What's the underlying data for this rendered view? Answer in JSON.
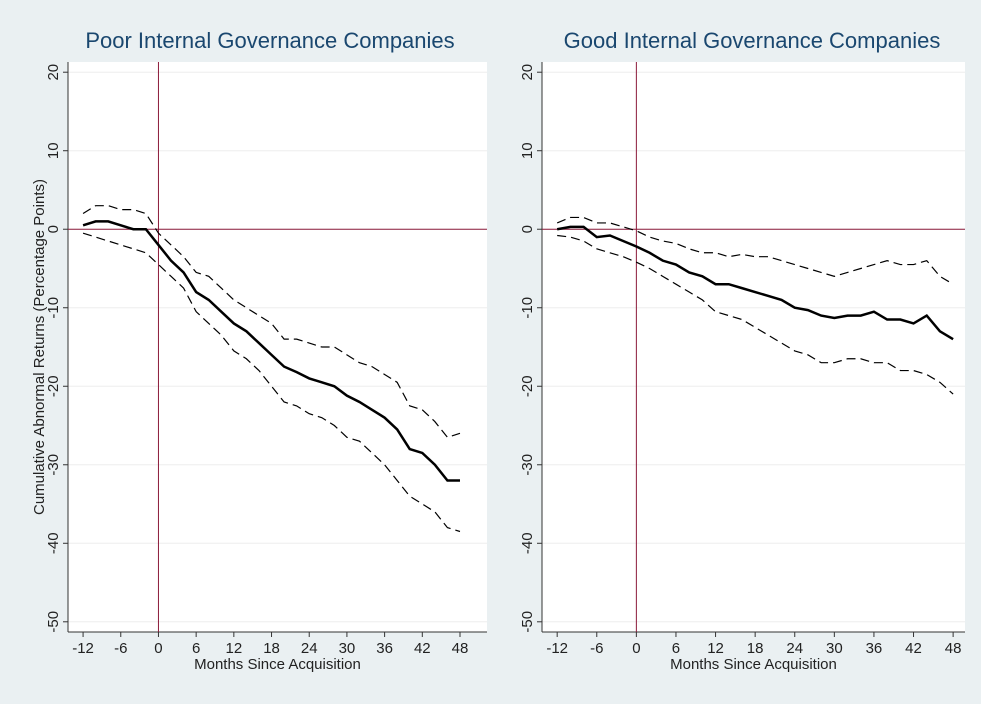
{
  "chart_data": [
    {
      "type": "line",
      "title": "Poor Internal Governance Companies",
      "xlabel": "Months Since Acquisition",
      "ylabel": "Cumulative Abnormal Returns (Percentage Points)",
      "x": [
        -12,
        -10,
        -8,
        -6,
        -4,
        -2,
        0,
        2,
        4,
        6,
        8,
        10,
        12,
        14,
        16,
        18,
        20,
        22,
        24,
        26,
        28,
        30,
        32,
        34,
        36,
        38,
        40,
        42,
        44,
        46,
        48
      ],
      "series": [
        {
          "color": "#000000",
          "dash": false,
          "values": [
            0.5,
            1,
            1,
            0.5,
            0,
            0,
            -2,
            -4,
            -5.5,
            -8,
            -9,
            -10.5,
            -12,
            -13,
            -14.5,
            -16,
            -17.5,
            -18.2,
            -19,
            -19.5,
            -20,
            -21.2,
            -22,
            -23,
            -24,
            -25.5,
            -28,
            -28.5,
            -30,
            -32,
            -32
          ]
        },
        {
          "color": "#000000",
          "dash": true,
          "values": [
            2,
            3,
            3,
            2.5,
            2.5,
            2,
            -0.5,
            -2,
            -3.5,
            -5.5,
            -6,
            -7.5,
            -9,
            -10,
            -11,
            -12,
            -14,
            -14,
            -14.5,
            -15,
            -15,
            -16,
            -17,
            -17.5,
            -18.5,
            -19.5,
            -22.5,
            -23,
            -24.5,
            -26.5,
            -26
          ]
        },
        {
          "color": "#000000",
          "dash": true,
          "values": [
            -0.5,
            -1,
            -1.5,
            -2,
            -2.5,
            -3,
            -4.5,
            -6,
            -7.5,
            -10.5,
            -12,
            -13.5,
            -15.5,
            -16.5,
            -18,
            -20,
            -22,
            -22.5,
            -23.5,
            -24,
            -25,
            -26.5,
            -27,
            -28.5,
            -30,
            -32,
            -34,
            -35,
            -36,
            -38,
            -38.5
          ]
        }
      ],
      "xlim": [
        -14.4,
        52.3
      ],
      "xticks": [
        -12,
        -6,
        0,
        6,
        12,
        18,
        24,
        30,
        36,
        42,
        48
      ],
      "ylim": [
        -51.3,
        21.3
      ],
      "yticks": [
        -50,
        -40,
        -30,
        -20,
        -10,
        0,
        10,
        20
      ],
      "xline": 0,
      "yline": 0,
      "refline_color": "#8b1a3a",
      "grid": true
    },
    {
      "type": "line",
      "title": "Good Internal Governance Companies",
      "xlabel": "Months Since Acquisition",
      "x": [
        -12,
        -10,
        -8,
        -6,
        -4,
        -2,
        0,
        2,
        4,
        6,
        8,
        10,
        12,
        14,
        16,
        18,
        20,
        22,
        24,
        26,
        28,
        30,
        32,
        34,
        36,
        38,
        40,
        42,
        44,
        46,
        48
      ],
      "series": [
        {
          "color": "#000000",
          "dash": false,
          "values": [
            0,
            0.3,
            0.3,
            -1,
            -0.8,
            -1.5,
            -2.2,
            -3,
            -4,
            -4.5,
            -5.5,
            -6,
            -7,
            -7,
            -7.5,
            -8,
            -8.5,
            -9,
            -10,
            -10.3,
            -11,
            -11.3,
            -11,
            -11,
            -10.5,
            -11.5,
            -11.5,
            -12,
            -11,
            -13,
            -14
          ]
        },
        {
          "color": "#000000",
          "dash": true,
          "values": [
            0.8,
            1.5,
            1.5,
            0.8,
            0.8,
            0.3,
            -0.2,
            -1,
            -1.5,
            -1.8,
            -2.5,
            -3,
            -3,
            -3.5,
            -3.2,
            -3.5,
            -3.5,
            -4,
            -4.5,
            -5,
            -5.5,
            -6,
            -5.5,
            -5,
            -4.5,
            -4,
            -4.5,
            -4.5,
            -4,
            -6,
            -7
          ]
        },
        {
          "color": "#000000",
          "dash": true,
          "values": [
            -0.8,
            -1,
            -1.5,
            -2.5,
            -3,
            -3.5,
            -4.2,
            -5,
            -6,
            -7,
            -8,
            -9,
            -10.5,
            -11,
            -11.5,
            -12.5,
            -13.5,
            -14.5,
            -15.5,
            -16,
            -17,
            -17,
            -16.5,
            -16.5,
            -17,
            -17,
            -18,
            -18,
            -18.5,
            -19.5,
            -21
          ]
        }
      ],
      "xlim": [
        -14.3,
        49.8
      ],
      "xticks": [
        -12,
        -6,
        0,
        6,
        12,
        18,
        24,
        30,
        36,
        42,
        48
      ],
      "ylim": [
        -51.3,
        21.3
      ],
      "yticks": [
        -50,
        -40,
        -30,
        -20,
        -10,
        0,
        10,
        20
      ],
      "xline": 0,
      "yline": 0,
      "refline_color": "#8b1a3a",
      "grid": true
    }
  ]
}
